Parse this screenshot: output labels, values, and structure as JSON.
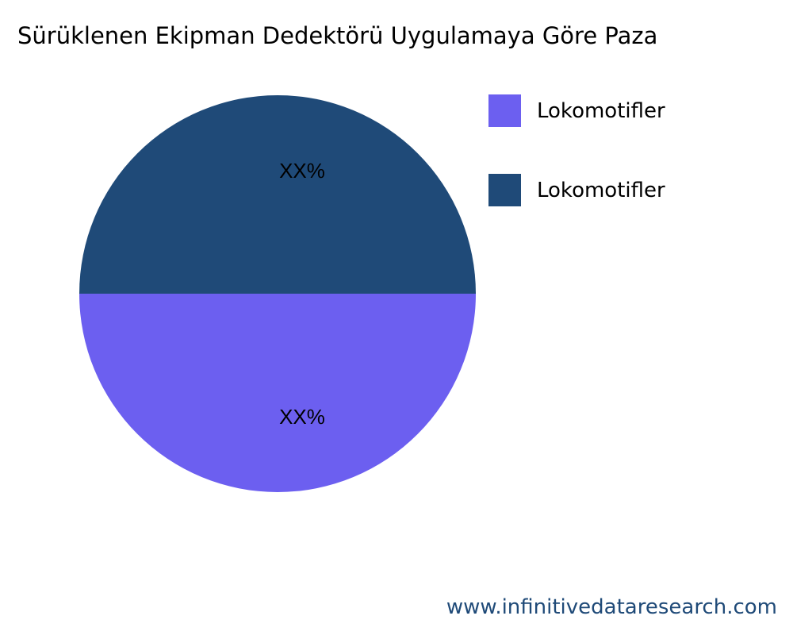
{
  "chart_data": {
    "type": "pie",
    "title": "Sürüklenen Ekipman Dedektörü Uygulamaya Göre Paza",
    "slices": [
      {
        "name": "Lokomotifler",
        "value": 50,
        "label": "XX%",
        "color": "#6C5FF0"
      },
      {
        "name": "Lokomotifler",
        "value": 50,
        "label": "XX%",
        "color": "#1F4A78"
      }
    ],
    "legend": "right"
  },
  "watermark": "www.infinitivedataresearch.com"
}
